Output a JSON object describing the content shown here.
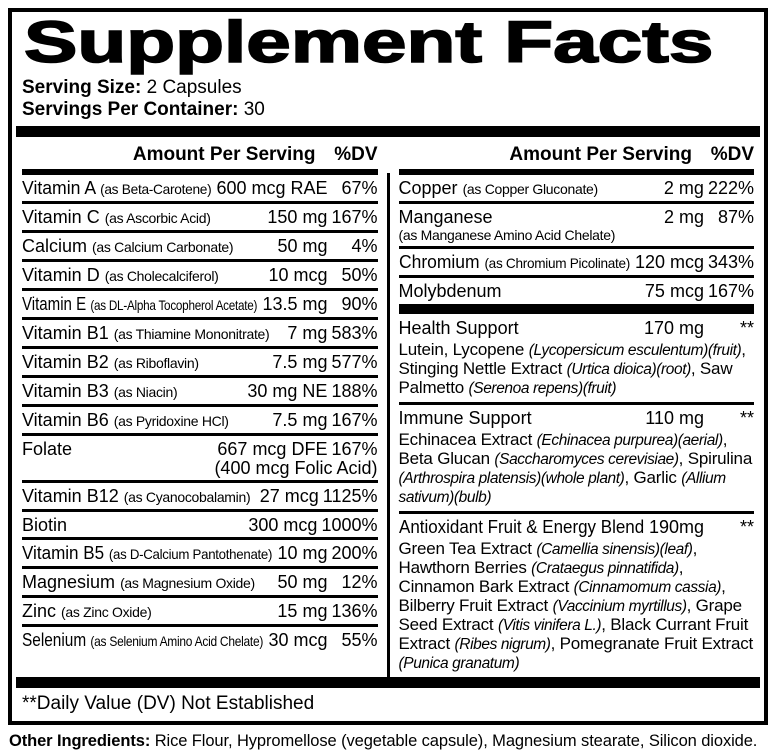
{
  "colors": {
    "foreground": "#000000",
    "background": "#ffffff"
  },
  "label": {
    "title": "Supplement Facts",
    "serving_size_label": "Serving Size:",
    "serving_size_value": " 2 Capsules",
    "servings_label": "Servings Per Container:",
    "servings_value": " 30",
    "amount_header": "Amount Per Serving",
    "dv_header": "%DV",
    "left_rows": [
      {
        "name": "Vitamin A",
        "form": "(as Beta-Carotene)",
        "amount": "600 mcg RAE",
        "dv": "67%"
      },
      {
        "name": "Vitamin C",
        "form": "(as Ascorbic Acid)",
        "amount": "150 mg",
        "dv": "167%"
      },
      {
        "name": "Calcium",
        "form": "(as Calcium Carbonate)",
        "amount": "50 mg",
        "dv": "4%"
      },
      {
        "name": "Vitamin D",
        "form": "(as Cholecalciferol)",
        "amount": "10 mcg",
        "dv": "50%"
      },
      {
        "name": "Vitamin E",
        "form": "(as DL-Alpha Tocopherol Acetate)",
        "amount": "13.5 mg",
        "dv": "90%"
      },
      {
        "name": "Vitamin B1",
        "form": "(as Thiamine Mononitrate)",
        "amount": "7 mg",
        "dv": "583%"
      },
      {
        "name": "Vitamin B2",
        "form": "(as Riboflavin)",
        "amount": "7.5 mg",
        "dv": "577%"
      },
      {
        "name": "Vitamin B3",
        "form": "(as Niacin)",
        "amount": "30 mg NE",
        "dv": "188%"
      },
      {
        "name": "Vitamin B6",
        "form": "(as Pyridoxine HCl)",
        "amount": "7.5 mg",
        "dv": "167%"
      },
      {
        "name": "Folate",
        "form": "",
        "amount": "667 mcg DFE",
        "dv": "167%",
        "amount_note": "(400 mcg Folic Acid)"
      },
      {
        "name": "Vitamin B12",
        "form": "(as Cyanocobalamin)",
        "amount": "27 mcg",
        "dv": "1125%"
      },
      {
        "name": "Biotin",
        "form": "",
        "amount": "300 mcg",
        "dv": "1000%"
      },
      {
        "name": "Vitamin B5",
        "form": "(as D-Calcium Pantothenate)",
        "amount": "10 mg",
        "dv": "200%"
      },
      {
        "name": "Magnesium",
        "form": "(as Magnesium Oxide)",
        "amount": "50 mg",
        "dv": "12%"
      },
      {
        "name": "Zinc",
        "form": "(as Zinc Oxide)",
        "amount": "15 mg",
        "dv": "136%"
      },
      {
        "name": "Selenium",
        "form": "(as Selenium Amino Acid Chelate)",
        "amount": "30 mcg",
        "dv": "55%"
      }
    ],
    "right_rows": [
      {
        "name": "Copper",
        "form": "(as Copper Gluconate)",
        "amount": "2 mg",
        "dv": "222%"
      },
      {
        "name": "Manganese",
        "form": "(as Manganese Amino Acid Chelate)",
        "amount": "2 mg",
        "dv": "87%"
      },
      {
        "name": "Chromium",
        "form": "(as Chromium Picolinate)",
        "amount": "120 mcg",
        "dv": "343%"
      },
      {
        "name": "Molybdenum",
        "form": "",
        "amount": "75 mcg",
        "dv": "167%"
      }
    ],
    "blends": [
      {
        "name": "Health Support",
        "amount": "170 mg",
        "dv": "**",
        "desc": [
          {
            "t": "Lutein, Lycopene ",
            "i": false
          },
          {
            "t": "(Lycopersicum esculentum)(fruit)",
            "i": true
          },
          {
            "t": ", Stinging Nettle Extract ",
            "i": false
          },
          {
            "t": "(Urtica dioica)(root)",
            "i": true
          },
          {
            "t": ", Saw Palmetto ",
            "i": false
          },
          {
            "t": "(Serenoa repens)(fruit)",
            "i": true
          }
        ]
      },
      {
        "name": "Immune Support",
        "amount": "110 mg",
        "dv": "**",
        "desc": [
          {
            "t": "Echinacea Extract ",
            "i": false
          },
          {
            "t": "(Echinacea purpurea)(aerial)",
            "i": true
          },
          {
            "t": ", Beta Glucan ",
            "i": false
          },
          {
            "t": "(Saccharomyces cerevisiae)",
            "i": true
          },
          {
            "t": ", Spirulina ",
            "i": false
          },
          {
            "t": "(Arthrospira platensis)(whole plant)",
            "i": true
          },
          {
            "t": ", Garlic ",
            "i": false
          },
          {
            "t": "(Allium sativum)(bulb)",
            "i": true
          }
        ]
      },
      {
        "name": "Antioxidant Fruit & Energy Blend",
        "amount": "190mg",
        "dv": "**",
        "desc": [
          {
            "t": "Green Tea Extract ",
            "i": false
          },
          {
            "t": "(Camellia sinensis)(leaf)",
            "i": true
          },
          {
            "t": ", Hawthorn Berries ",
            "i": false
          },
          {
            "t": "(Crataegus pinnatifida)",
            "i": true
          },
          {
            "t": ", Cinnamon Bark Extract ",
            "i": false
          },
          {
            "t": "(Cinnamomum cassia)",
            "i": true
          },
          {
            "t": ", Bilberry Fruit Extract ",
            "i": false
          },
          {
            "t": "(Vaccinium myrtillus)",
            "i": true
          },
          {
            "t": ", Grape Seed Extract ",
            "i": false
          },
          {
            "t": "(Vitis vinifera L.)",
            "i": true
          },
          {
            "t": ", Black Currant Fruit Extract ",
            "i": false
          },
          {
            "t": "(Ribes nigrum)",
            "i": true
          },
          {
            "t": ", Pomegranate Fruit Extract ",
            "i": false
          },
          {
            "t": "(Punica granatum)",
            "i": true
          }
        ]
      }
    ],
    "footnote": "**Daily Value (DV) Not Established",
    "other_ingredients_label": "Other Ingredients:",
    "other_ingredients_value": " Rice Flour, Hypromellose (vegetable capsule), Magnesium stearate, Silicon dioxide."
  }
}
